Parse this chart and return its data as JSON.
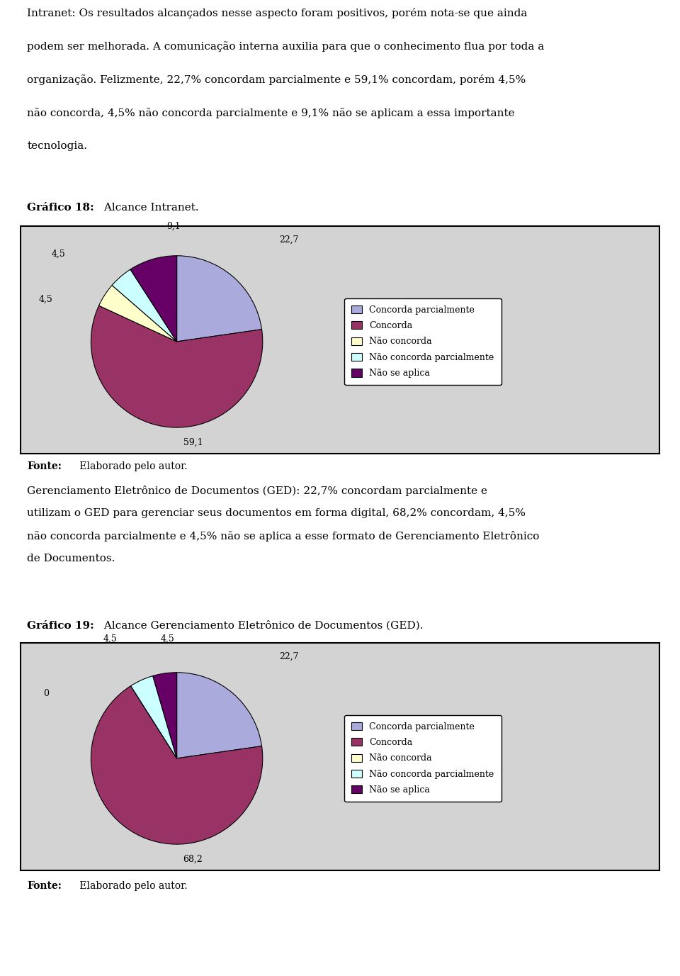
{
  "paragraph1_lines": [
    "Intranet: Os resultados alcançados nesse aspecto foram positivos, porém nota-se que ainda",
    "podem ser melhorada. A comunicação interna auxilia para que o conhecimento flua por toda a",
    "organização. Felizmente, 22,7% concordam parcialmente e 59,1% concordam, porém 4,5%",
    "não concorda, 4,5% não concorda parcialmente e 9,1% não se aplicam a essa importante",
    "tecnologia."
  ],
  "grafico18_bold": "Gráfico 18:",
  "grafico18_rest": " Alcance Intranet.",
  "chart1_values": [
    22.7,
    59.1,
    4.5,
    4.5,
    9.1
  ],
  "fonte_bold": "Fonte:",
  "fonte_rest": " Elaborado pelo autor.",
  "paragraph2_lines": [
    "Gerenciamento Eletrônico de Documentos (GED): 22,7% concordam parcialmente e",
    "utilizam o GED para gerenciar seus documentos em forma digital, 68,2% concordam, 4,5%",
    "não concorda parcialmente e 4,5% não se aplica a esse formato de Gerenciamento Eletrônico",
    "de Documentos."
  ],
  "grafico19_bold": "Gráfico 19:",
  "grafico19_rest": " Alcance Gerenciamento Eletrônico de Documentos (GED).",
  "chart2_values": [
    22.7,
    68.2,
    0.001,
    4.5,
    4.5
  ],
  "legend_labels": [
    "Concorda parcialmente",
    "Concorda",
    "Não concorda",
    "Não concorda parcialmente",
    "Não se aplica"
  ],
  "colors": [
    "#AAAADD",
    "#993366",
    "#FFFFCC",
    "#CCFFFF",
    "#660066"
  ],
  "background_color": "#D3D3D3"
}
